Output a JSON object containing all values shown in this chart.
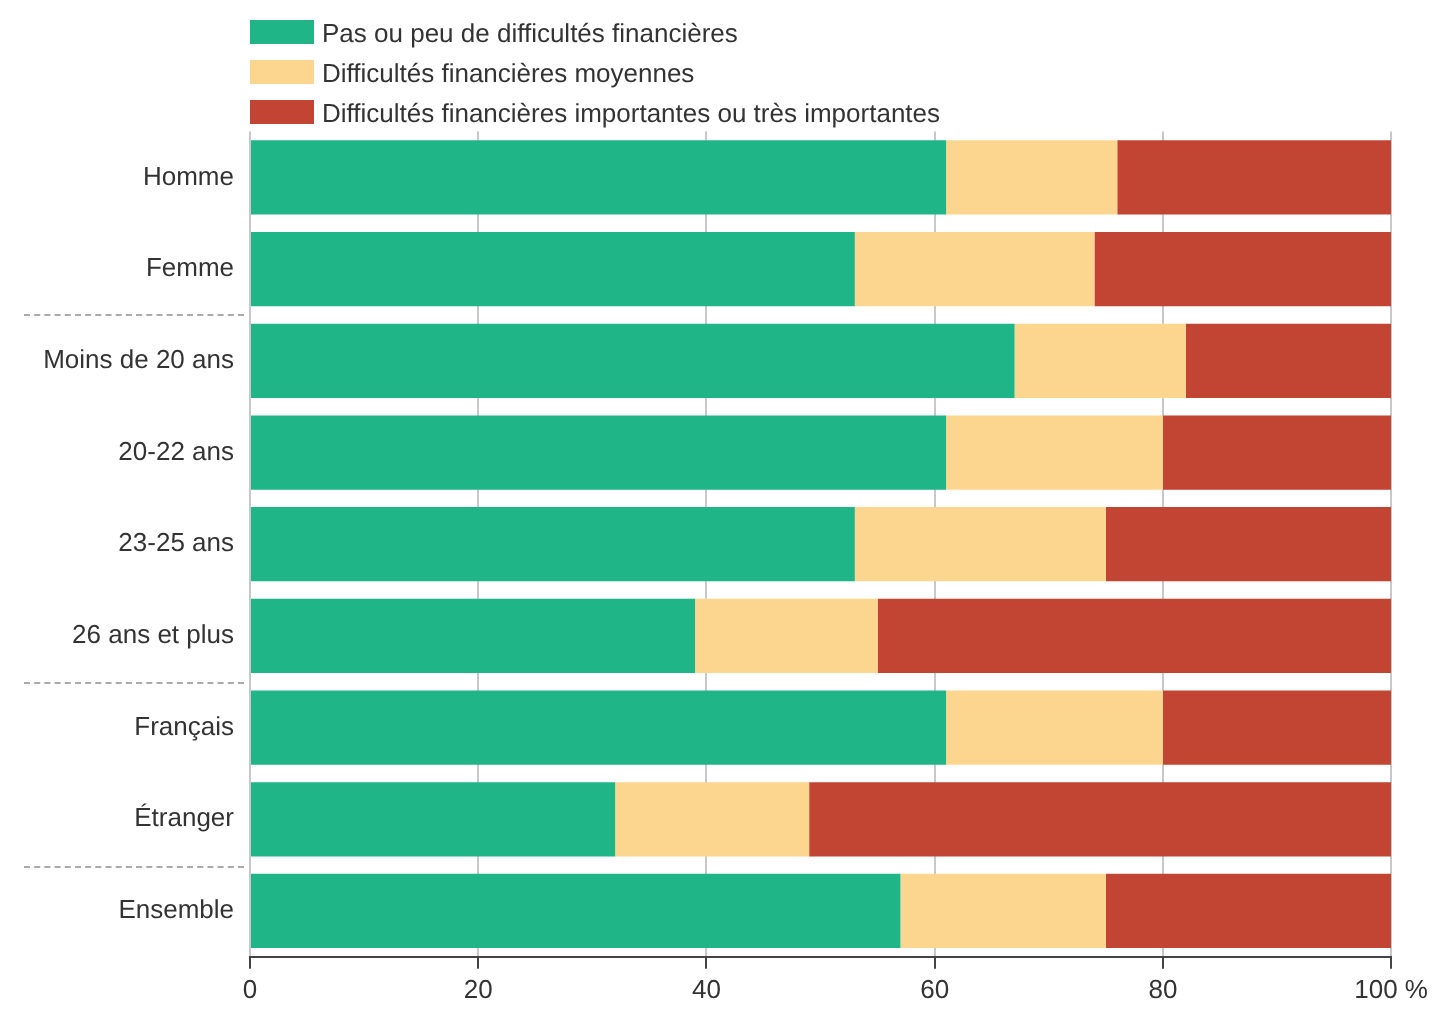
{
  "chart_data": {
    "type": "bar",
    "orientation": "horizontal",
    "stacked": true,
    "categories": [
      "Homme",
      "Femme",
      "Moins de 20 ans",
      "20-22 ans",
      "23-25 ans",
      "26 ans et plus",
      "Français",
      "Étranger",
      "Ensemble"
    ],
    "series": [
      {
        "name": "Pas ou peu de difficultés financières",
        "color": "#20b586",
        "values": [
          61,
          53,
          67,
          61,
          53,
          39,
          61,
          32,
          57
        ]
      },
      {
        "name": "Difficultés financières moyennes",
        "color": "#fcd68f",
        "values": [
          15,
          21,
          15,
          19,
          22,
          16,
          19,
          17,
          18
        ]
      },
      {
        "name": "Difficultés financières importantes ou très importantes",
        "color": "#c24433",
        "values": [
          24,
          26,
          18,
          20,
          25,
          45,
          20,
          51,
          25
        ]
      }
    ],
    "xlim": [
      0,
      100
    ],
    "xticks": [
      0,
      20,
      40,
      60,
      80,
      {
        "value": 100,
        "label": "100 %"
      }
    ],
    "grid": "x",
    "legend": "top"
  }
}
